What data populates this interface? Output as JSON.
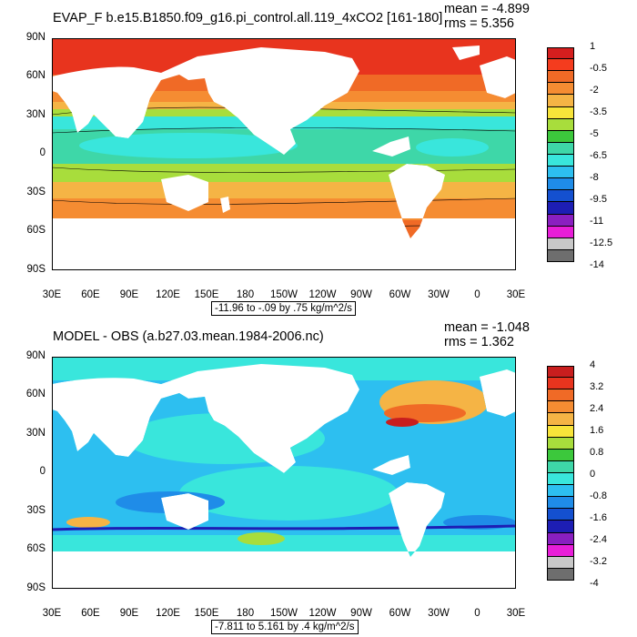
{
  "panels": [
    {
      "title": "EVAP_F b.e15.B1850.f09_g16.pi_control.all.119_4xCO2 [161-180]",
      "mean_label": "mean = -4.899",
      "rms_label": "rms = 5.356",
      "caption": "-11.96 to -.09 by .75 kg/m^2/s",
      "legend_labels": [
        "1",
        "-0.5",
        "-2",
        "-3.5",
        "-5",
        "-6.5",
        "-8",
        "-9.5",
        "-11",
        "-12.5",
        "-14"
      ],
      "legend_colors": [
        "#d51e1e",
        "#f43c1e",
        "#f06a26",
        "#f58c32",
        "#f5b445",
        "#f8e43a",
        "#a8dd3c",
        "#3cc83c",
        "#3ed7a8",
        "#39e6dc",
        "#2dbff0",
        "#1f8ce8",
        "#1450d0",
        "#1d1eb4",
        "#8a1fc0",
        "#e81ed8",
        "#c8c8c8",
        "#6e6e6e"
      ]
    },
    {
      "title": "MODEL - OBS (a.b27.03.mean.1984-2006.nc)",
      "mean_label": "mean = -1.048",
      "rms_label": "rms = 1.362",
      "caption": "-7.811 to 5.161 by .4 kg/m^2/s",
      "legend_labels": [
        "4",
        "3.2",
        "2.4",
        "1.6",
        "0.8",
        "0",
        "-0.8",
        "-1.6",
        "-2.4",
        "-3.2",
        "-4"
      ],
      "legend_colors": [
        "#c81e1e",
        "#e8341e",
        "#f06a26",
        "#f58c32",
        "#f5b445",
        "#f8e43a",
        "#a8dd3c",
        "#3cc83c",
        "#3ed7a8",
        "#39e6dc",
        "#2dbff0",
        "#1f8ce8",
        "#1450d0",
        "#1d1eb4",
        "#8a1fc0",
        "#e81ed8",
        "#c8c8c8",
        "#6e6e6e"
      ]
    }
  ],
  "lat_labels": [
    "90N",
    "60N",
    "30N",
    "0",
    "30S",
    "60S",
    "90S"
  ],
  "lon_labels": [
    "30E",
    "60E",
    "90E",
    "120E",
    "150E",
    "180",
    "150W",
    "120W",
    "90W",
    "60W",
    "30W",
    "0",
    "30E"
  ]
}
